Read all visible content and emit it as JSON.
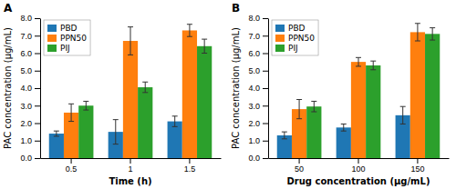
{
  "chart_data": [
    {
      "type": "bar",
      "title": "A",
      "xlabel": "Time (h)",
      "ylabel": "PAC concentration (μg/mL)",
      "categories": [
        "0.5",
        "1",
        "1.5"
      ],
      "series": [
        {
          "name": "PBD",
          "values": [
            1.4,
            1.5,
            2.1
          ],
          "errors": [
            0.15,
            0.7,
            0.3
          ]
        },
        {
          "name": "PPN50",
          "values": [
            2.6,
            6.7,
            7.3
          ],
          "errors": [
            0.5,
            0.8,
            0.35
          ]
        },
        {
          "name": "PIJ",
          "values": [
            3.0,
            4.05,
            6.4
          ],
          "errors": [
            0.25,
            0.3,
            0.4
          ]
        }
      ],
      "ylim": [
        0,
        8.0
      ],
      "yticks": [
        {
          "value": 0.0,
          "label": "0.0"
        },
        {
          "value": 1.0,
          "label": "1.0"
        },
        {
          "value": 2.0,
          "label": "2.0"
        },
        {
          "value": 3.0,
          "label": "3.0"
        },
        {
          "value": 4.0,
          "label": "4.0"
        },
        {
          "value": 5.0,
          "label": "5.0"
        },
        {
          "value": 6.0,
          "label": "6.0"
        },
        {
          "value": 7.0,
          "label": "7.0"
        },
        {
          "value": 8.0,
          "label": "8.0"
        }
      ],
      "grid": false,
      "legend": "upper left"
    },
    {
      "type": "bar",
      "title": "B",
      "xlabel": "Drug concentration (μg/mL)",
      "ylabel": "PAC concentration (μg/mL)",
      "categories": [
        "50",
        "100",
        "150"
      ],
      "series": [
        {
          "name": "PBD",
          "values": [
            1.3,
            1.75,
            2.45
          ],
          "errors": [
            0.2,
            0.2,
            0.5
          ]
        },
        {
          "name": "PPN50",
          "values": [
            2.8,
            5.5,
            7.2
          ],
          "errors": [
            0.55,
            0.25,
            0.5
          ]
        },
        {
          "name": "PIJ",
          "values": [
            2.95,
            5.3,
            7.1
          ],
          "errors": [
            0.3,
            0.25,
            0.35
          ]
        }
      ],
      "ylim": [
        0,
        8.0
      ],
      "yticks": [
        {
          "value": 0.0,
          "label": "0.0"
        },
        {
          "value": 1.0,
          "label": "1.0"
        },
        {
          "value": 2.0,
          "label": "2.0"
        },
        {
          "value": 3.0,
          "label": "3.0"
        },
        {
          "value": 4.0,
          "label": "4.0"
        },
        {
          "value": 5.0,
          "label": "5.0"
        },
        {
          "value": 6.0,
          "label": "6.0"
        },
        {
          "value": 7.0,
          "label": "7.0"
        },
        {
          "value": 8.0,
          "label": "8.0"
        }
      ],
      "grid": false,
      "legend": "upper left"
    }
  ]
}
